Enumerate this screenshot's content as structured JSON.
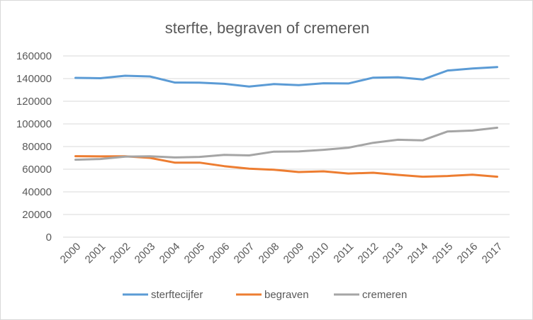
{
  "chart_data": {
    "type": "line",
    "title": "sterfte, begraven of cremeren",
    "xlabel": "",
    "ylabel": "",
    "categories": [
      "2000",
      "2001",
      "2002",
      "2003",
      "2004",
      "2005",
      "2006",
      "2007",
      "2008",
      "2009",
      "2010",
      "2011",
      "2012",
      "2013",
      "2014",
      "2015",
      "2016",
      "2017"
    ],
    "ylim": [
      0,
      160000
    ],
    "yticks": [
      0,
      20000,
      40000,
      60000,
      80000,
      100000,
      120000,
      140000,
      160000
    ],
    "ytick_labels": [
      "0",
      "20000",
      "40000",
      "60000",
      "80000",
      "100000",
      "120000",
      "140000",
      "160000"
    ],
    "grid": true,
    "legend_position": "bottom",
    "series": [
      {
        "name": "sterftecijfer",
        "color": "#5b9bd5",
        "values": [
          140600,
          140300,
          142500,
          141900,
          136500,
          136400,
          135400,
          133000,
          135100,
          134200,
          135900,
          135700,
          140800,
          141200,
          139200,
          147100,
          148900,
          150200
        ]
      },
      {
        "name": "begraven",
        "color": "#ed7d31",
        "values": [
          71500,
          71300,
          71400,
          70000,
          65800,
          65800,
          62700,
          60500,
          59500,
          57500,
          58100,
          56200,
          56900,
          55000,
          53400,
          54000,
          55100,
          53400
        ]
      },
      {
        "name": "cremeren",
        "color": "#a5a5a5",
        "values": [
          68400,
          69000,
          71100,
          71400,
          70400,
          70900,
          72700,
          72200,
          75500,
          75700,
          77100,
          79000,
          83300,
          86000,
          85500,
          93300,
          94100,
          96600
        ]
      }
    ]
  }
}
